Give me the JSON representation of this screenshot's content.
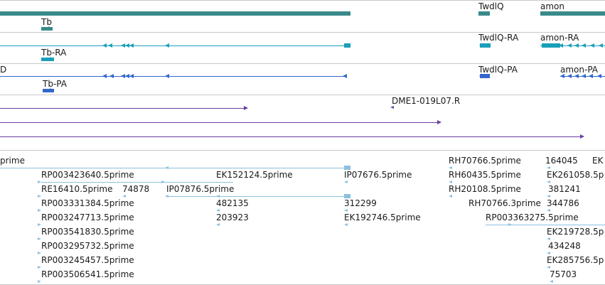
{
  "colors": {
    "gene": "#3a8a8a",
    "mrna": "#1a9fb8",
    "protein": "#3366cc",
    "clone": "#6a3fa0",
    "est": "#8cc0de",
    "separator": "#c8c8c8"
  },
  "tracks": {
    "gene": {
      "labels": [
        "Tb",
        "TwdlQ",
        "amon"
      ]
    },
    "mrna": {
      "labels": [
        "Tb-RA",
        "TwdlQ-RA",
        "amon-RA"
      ]
    },
    "protein": {
      "labels": [
        "D",
        "Tb-PA",
        "TwdlQ-PA",
        "amon-PA"
      ]
    },
    "clone": {
      "labels": [
        "DME1-019L07.R"
      ]
    },
    "est": {
      "labels": [
        "prime",
        "RP003423640.5prime",
        "EK152124.5prime",
        "IP07676.5prime",
        "RE16410.5prime",
        "74878",
        "IP07876.5prime",
        "RP003331384.5prime",
        "482135",
        "312299",
        "RP003247713.5prime",
        "203923",
        "EK192746.5prime",
        "RP003541830.5prime",
        "RP003295732.5prime",
        "RP003245457.5prime",
        "RP003506541.5prime",
        "RH70766.5prime",
        "RH60435.5prime",
        "RH20108.5prime",
        "RH70766.3prime",
        "RP003363275.5prime",
        "164045",
        "EK",
        "EK261058.5p",
        "381241",
        "344786",
        "EK219728.5p",
        "434248",
        "EK285756.5p",
        "75703"
      ]
    }
  }
}
